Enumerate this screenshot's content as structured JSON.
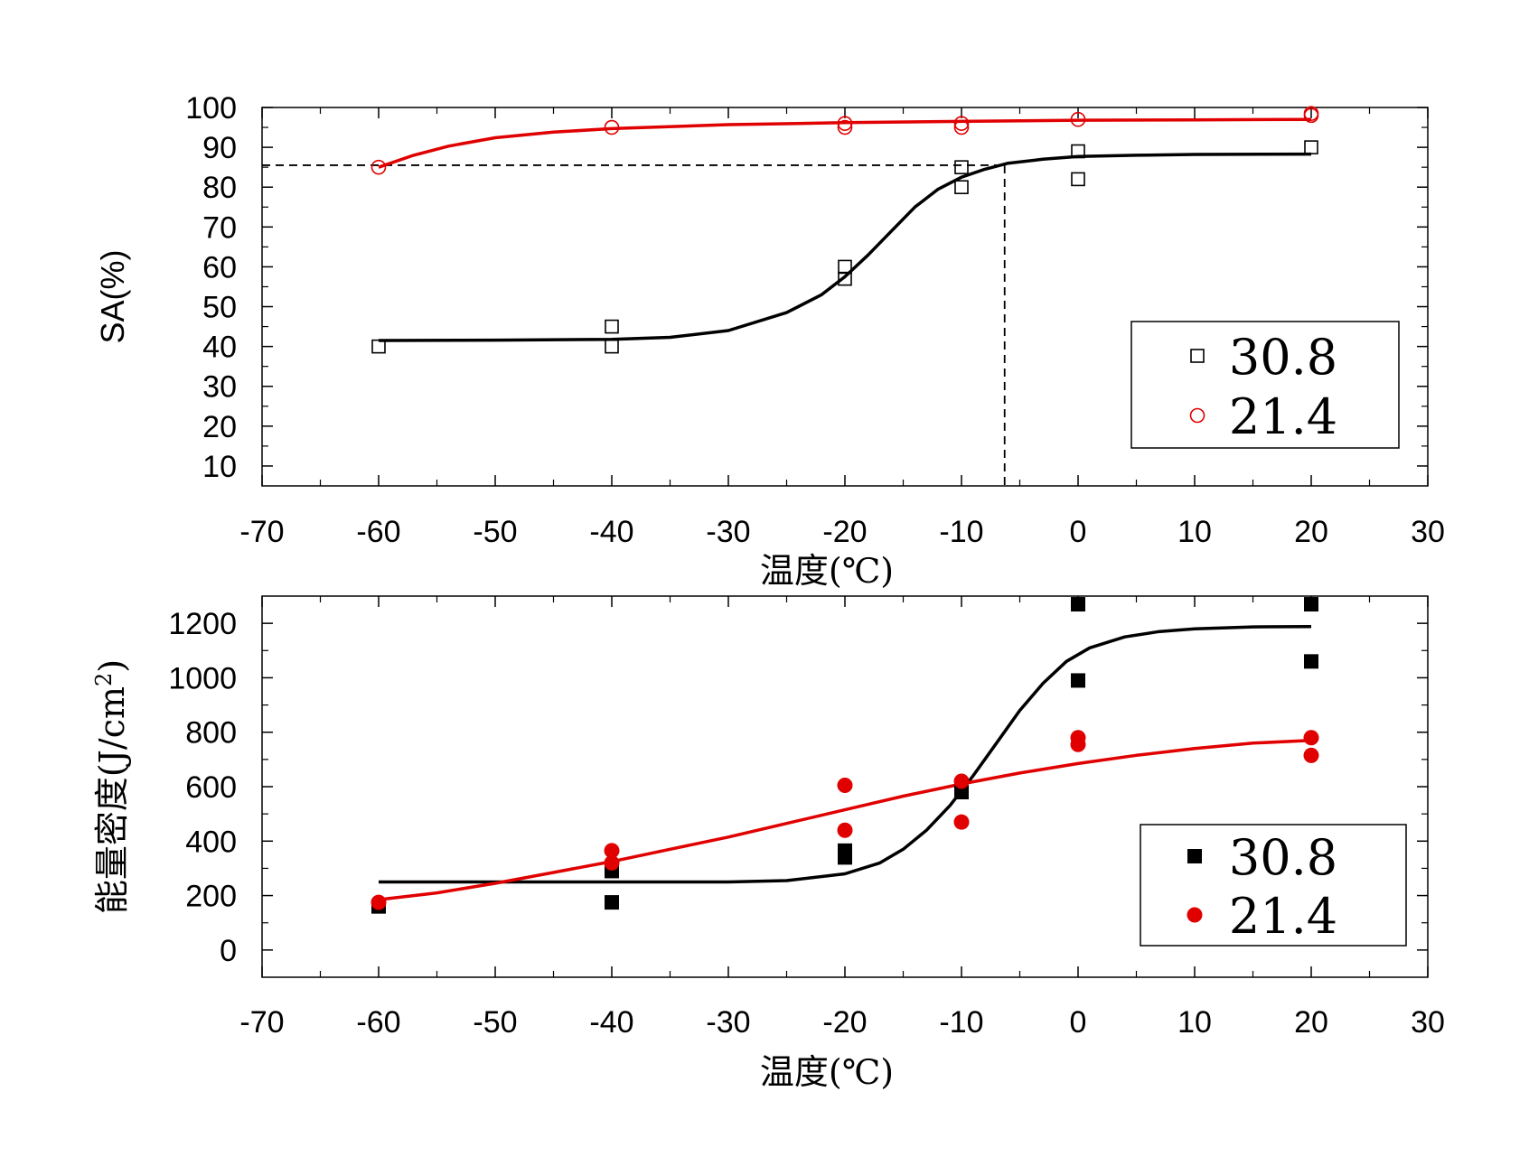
{
  "chart_data": [
    {
      "type": "scatter",
      "xlabel": "温度(℃)",
      "ylabel": "SA(%)",
      "xlim": [
        -70,
        30
      ],
      "ylim": [
        5,
        100
      ],
      "xticks": [
        -70,
        -60,
        -50,
        -40,
        -30,
        -20,
        -10,
        0,
        10,
        20,
        30
      ],
      "yticks": [
        10,
        20,
        30,
        40,
        50,
        60,
        70,
        80,
        90,
        100
      ],
      "grid": false,
      "legend_position": "bottom-right",
      "series": [
        {
          "name": "30.8",
          "color": "#000000",
          "marker": "open-square",
          "points": [
            [
              -60,
              40
            ],
            [
              -40,
              45
            ],
            [
              -40,
              40
            ],
            [
              -20,
              60
            ],
            [
              -20,
              57
            ],
            [
              -10,
              85
            ],
            [
              -10,
              80
            ],
            [
              0,
              89
            ],
            [
              0,
              82
            ],
            [
              20,
              90
            ]
          ],
          "fit": [
            [
              -60,
              41.5
            ],
            [
              -50,
              41.6
            ],
            [
              -40,
              41.8
            ],
            [
              -35,
              42.3
            ],
            [
              -30,
              44
            ],
            [
              -25,
              48.5
            ],
            [
              -22,
              53
            ],
            [
              -20,
              57.5
            ],
            [
              -18,
              63
            ],
            [
              -16,
              69
            ],
            [
              -14,
              75
            ],
            [
              -12,
              79.5
            ],
            [
              -10,
              82.5
            ],
            [
              -8,
              84.5
            ],
            [
              -6,
              86
            ],
            [
              -3,
              87
            ],
            [
              0,
              87.7
            ],
            [
              5,
              88
            ],
            [
              10,
              88.2
            ],
            [
              20,
              88.3
            ]
          ]
        },
        {
          "name": "21.4",
          "color": "#e00000",
          "marker": "open-circle",
          "points": [
            [
              -60,
              85
            ],
            [
              -40,
              95
            ],
            [
              -20,
              96
            ],
            [
              -20,
              95
            ],
            [
              -10,
              96
            ],
            [
              -10,
              95
            ],
            [
              0,
              97
            ],
            [
              20,
              98.5
            ],
            [
              20,
              98
            ]
          ],
          "fit": [
            [
              -60,
              85
            ],
            [
              -57,
              88
            ],
            [
              -54,
              90.3
            ],
            [
              -50,
              92.4
            ],
            [
              -45,
              93.8
            ],
            [
              -40,
              94.7
            ],
            [
              -30,
              95.7
            ],
            [
              -20,
              96.2
            ],
            [
              -10,
              96.5
            ],
            [
              0,
              96.8
            ],
            [
              10,
              96.9
            ],
            [
              20,
              97
            ]
          ]
        }
      ],
      "reference_lines": {
        "y": 85.5,
        "x": -6.3,
        "style": "dashed"
      }
    },
    {
      "type": "scatter",
      "xlabel": "温度(℃)",
      "ylabel": "能量密度(J/cm²)",
      "ylabel_parts": [
        "能量密度(J/cm",
        "2",
        ")"
      ],
      "xlim": [
        -70,
        30
      ],
      "ylim": [
        -100,
        1300
      ],
      "xticks": [
        -70,
        -60,
        -50,
        -40,
        -30,
        -20,
        -10,
        0,
        10,
        20,
        30
      ],
      "yticks": [
        0,
        200,
        400,
        600,
        800,
        1000,
        1200
      ],
      "grid": false,
      "legend_position": "bottom-right",
      "series": [
        {
          "name": "30.8",
          "color": "#000000",
          "marker": "filled-square",
          "points": [
            [
              -60,
              160
            ],
            [
              -40,
              290
            ],
            [
              -40,
              175
            ],
            [
              -20,
              365
            ],
            [
              -20,
              340
            ],
            [
              -10,
              580
            ],
            [
              0,
              1270
            ],
            [
              0,
              990
            ],
            [
              20,
              1270
            ],
            [
              20,
              1060
            ]
          ],
          "fit": [
            [
              -60,
              250
            ],
            [
              -40,
              250
            ],
            [
              -30,
              250
            ],
            [
              -25,
              255
            ],
            [
              -20,
              280
            ],
            [
              -17,
              320
            ],
            [
              -15,
              370
            ],
            [
              -13,
              440
            ],
            [
              -11,
              530
            ],
            [
              -9,
              640
            ],
            [
              -7,
              760
            ],
            [
              -5,
              880
            ],
            [
              -3,
              980
            ],
            [
              -1,
              1060
            ],
            [
              1,
              1110
            ],
            [
              4,
              1150
            ],
            [
              7,
              1170
            ],
            [
              10,
              1180
            ],
            [
              15,
              1187
            ],
            [
              20,
              1188
            ]
          ]
        },
        {
          "name": "21.4",
          "color": "#e00000",
          "marker": "filled-circle",
          "points": [
            [
              -60,
              175
            ],
            [
              -40,
              365
            ],
            [
              -40,
              320
            ],
            [
              -20,
              605
            ],
            [
              -20,
              440
            ],
            [
              -10,
              620
            ],
            [
              -10,
              470
            ],
            [
              0,
              780
            ],
            [
              0,
              755
            ],
            [
              20,
              780
            ],
            [
              20,
              715
            ]
          ],
          "fit": [
            [
              -60,
              185
            ],
            [
              -55,
              210
            ],
            [
              -50,
              245
            ],
            [
              -45,
              285
            ],
            [
              -40,
              325
            ],
            [
              -35,
              370
            ],
            [
              -30,
              415
            ],
            [
              -25,
              465
            ],
            [
              -20,
              515
            ],
            [
              -15,
              565
            ],
            [
              -10,
              610
            ],
            [
              -5,
              650
            ],
            [
              0,
              685
            ],
            [
              5,
              715
            ],
            [
              10,
              740
            ],
            [
              15,
              760
            ],
            [
              20,
              770
            ]
          ]
        }
      ]
    }
  ]
}
